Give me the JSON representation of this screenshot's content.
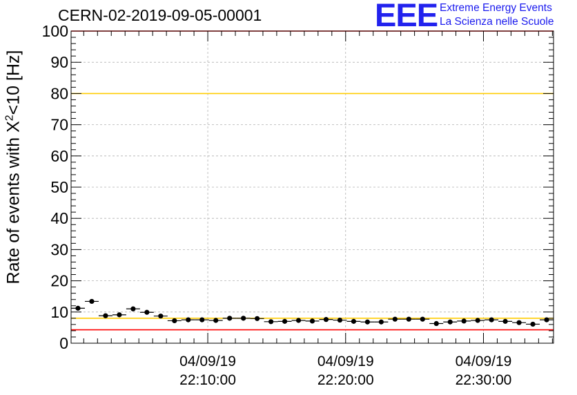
{
  "header": {
    "run_title": "CERN-02-2019-09-05-00001",
    "logo_text": "EEE",
    "logo_line1": "Extreme Energy Events",
    "logo_line2": "La Scienza nelle Scuole"
  },
  "chart_data": {
    "type": "scatter",
    "title": "CERN-02-2019-09-05-00001",
    "ylabel_main": "Rate of events with X",
    "ylabel_sup": "2",
    "ylabel_tail": "<10 [Hz]",
    "ylim": [
      0,
      100
    ],
    "yticks": [
      0,
      10,
      20,
      30,
      40,
      50,
      60,
      70,
      80,
      90,
      100
    ],
    "xlim": [
      "04/09/19 22:00:05",
      "04/09/19 22:35:05"
    ],
    "xticks": [
      {
        "date": "04/09/19",
        "time": "22:10:00"
      },
      {
        "date": "04/09/19",
        "time": "22:20:00"
      },
      {
        "date": "04/09/19",
        "time": "22:30:00"
      }
    ],
    "grid": true,
    "bin_width_minutes": 1,
    "series": [
      {
        "points": [
          {
            "t": "22:00:35",
            "y": 11.2
          },
          {
            "t": "22:01:35",
            "y": 13.4
          },
          {
            "t": "22:02:35",
            "y": 8.8
          },
          {
            "t": "22:03:35",
            "y": 9.1
          },
          {
            "t": "22:04:35",
            "y": 11.0
          },
          {
            "t": "22:05:35",
            "y": 9.9
          },
          {
            "t": "22:06:35",
            "y": 8.7
          },
          {
            "t": "22:07:35",
            "y": 7.2
          },
          {
            "t": "22:08:35",
            "y": 7.5
          },
          {
            "t": "22:09:35",
            "y": 7.5
          },
          {
            "t": "22:10:35",
            "y": 7.3
          },
          {
            "t": "22:11:35",
            "y": 8.0
          },
          {
            "t": "22:12:35",
            "y": 8.0
          },
          {
            "t": "22:13:35",
            "y": 7.9
          },
          {
            "t": "22:14:35",
            "y": 6.9
          },
          {
            "t": "22:15:35",
            "y": 7.0
          },
          {
            "t": "22:16:35",
            "y": 7.3
          },
          {
            "t": "22:17:35",
            "y": 7.1
          },
          {
            "t": "22:18:35",
            "y": 7.6
          },
          {
            "t": "22:19:35",
            "y": 7.4
          },
          {
            "t": "22:20:35",
            "y": 7.0
          },
          {
            "t": "22:21:35",
            "y": 6.8
          },
          {
            "t": "22:22:35",
            "y": 6.8
          },
          {
            "t": "22:23:35",
            "y": 7.7
          },
          {
            "t": "22:24:35",
            "y": 7.7
          },
          {
            "t": "22:25:35",
            "y": 7.7
          },
          {
            "t": "22:26:35",
            "y": 6.3
          },
          {
            "t": "22:27:35",
            "y": 6.8
          },
          {
            "t": "22:28:35",
            "y": 7.1
          },
          {
            "t": "22:29:35",
            "y": 7.3
          },
          {
            "t": "22:30:35",
            "y": 7.5
          },
          {
            "t": "22:31:35",
            "y": 7.0
          },
          {
            "t": "22:32:35",
            "y": 6.6
          },
          {
            "t": "22:33:35",
            "y": 6.1
          },
          {
            "t": "22:34:35",
            "y": 7.5
          }
        ]
      }
    ],
    "reference_lines": [
      {
        "y": 100,
        "color": "#ff0000"
      },
      {
        "y": 4.3,
        "color": "#ff0000"
      },
      {
        "y": 80,
        "color": "#ffcc00"
      },
      {
        "y": 8.0,
        "color": "#ffcc00"
      }
    ],
    "colors": {
      "points": "#000000",
      "grid": "#b0b0b0",
      "logo": "#2222ee"
    }
  }
}
